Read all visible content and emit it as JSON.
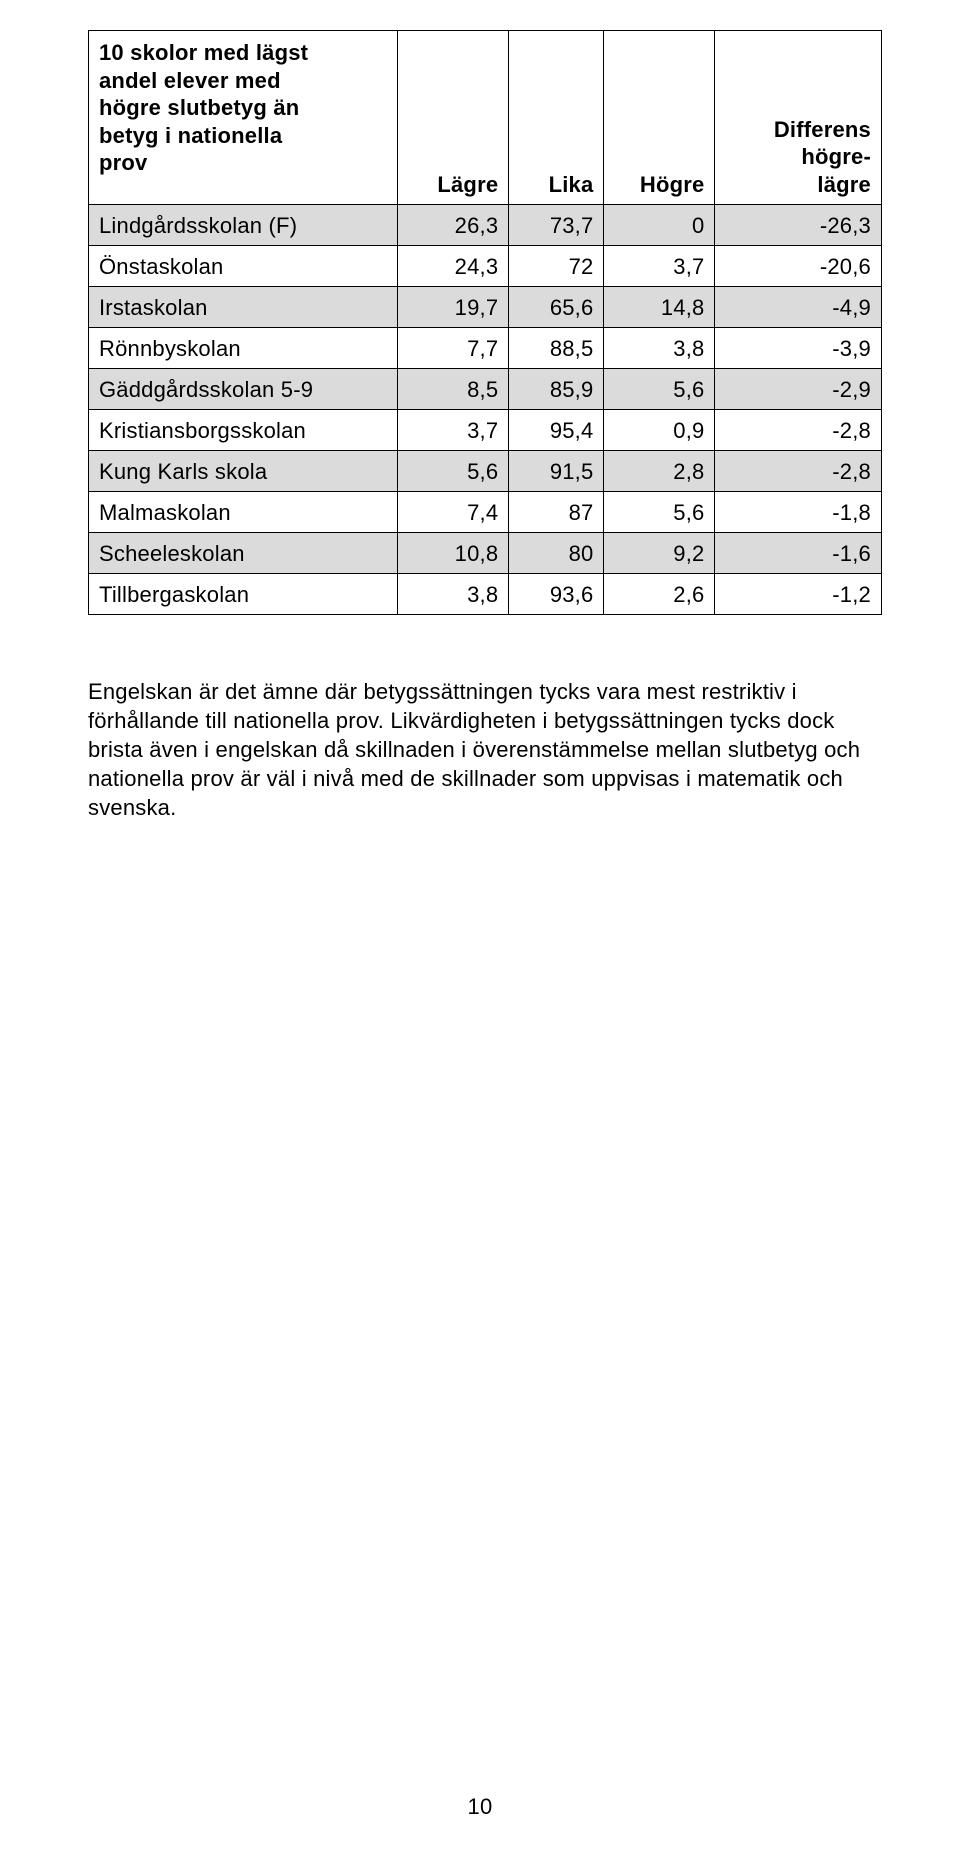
{
  "table": {
    "headers": {
      "name_l1": "10 skolor med lägst",
      "name_l2": "andel elever med",
      "name_l3": "högre slutbetyg än",
      "name_l4": "betyg i nationella",
      "name_l5": "prov",
      "col1": "Lägre",
      "col2": "Lika",
      "col3": "Högre",
      "col4_l1": "Differens",
      "col4_l2": "högre-",
      "col4_l3": "lägre"
    },
    "rows": [
      {
        "name": "Lindgårdsskolan (F)",
        "v1": "26,3",
        "v2": "73,7",
        "v3": "0",
        "v4": "-26,3"
      },
      {
        "name": "Önstaskolan",
        "v1": "24,3",
        "v2": "72",
        "v3": "3,7",
        "v4": "-20,6"
      },
      {
        "name": "Irstaskolan",
        "v1": "19,7",
        "v2": "65,6",
        "v3": "14,8",
        "v4": "-4,9"
      },
      {
        "name": "Rönnbyskolan",
        "v1": "7,7",
        "v2": "88,5",
        "v3": "3,8",
        "v4": "-3,9"
      },
      {
        "name": "Gäddgårdsskolan 5-9",
        "v1": "8,5",
        "v2": "85,9",
        "v3": "5,6",
        "v4": "-2,9"
      },
      {
        "name": "Kristiansborgsskolan",
        "v1": "3,7",
        "v2": "95,4",
        "v3": "0,9",
        "v4": "-2,8"
      },
      {
        "name": "Kung Karls skola",
        "v1": "5,6",
        "v2": "91,5",
        "v3": "2,8",
        "v4": "-2,8"
      },
      {
        "name": "Malmaskolan",
        "v1": "7,4",
        "v2": "87",
        "v3": "5,6",
        "v4": "-1,8"
      },
      {
        "name": "Scheeleskolan",
        "v1": "10,8",
        "v2": "80",
        "v3": "9,2",
        "v4": "-1,6"
      },
      {
        "name": "Tillbergaskolan",
        "v1": "3,8",
        "v2": "93,6",
        "v3": "2,6",
        "v4": "-1,2"
      }
    ],
    "shade_color": "#dcdbdb",
    "border_color": "#000000"
  },
  "paragraph": "Engelskan är det ämne där betygssättningen tycks vara mest restriktiv i förhållande till nationella prov. Likvärdigheten i betygssättningen tycks dock brista även i engelskan då skillnaden i överenstämmelse mellan slutbetyg och nationella prov är väl i nivå med de skillnader som uppvisas i matematik och svenska.",
  "page_number": "10"
}
